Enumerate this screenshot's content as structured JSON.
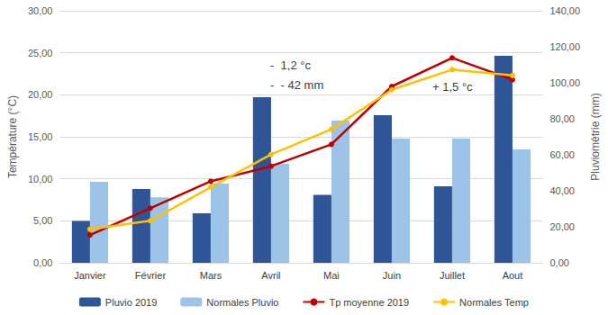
{
  "chart_data": {
    "type": "bar",
    "categories": [
      "Janvier",
      "Février",
      "Mars",
      "Avril",
      "Mai",
      "Juin",
      "Juillet",
      "Aout"
    ],
    "series": [
      {
        "name": "Pluvio 2019",
        "type": "bar",
        "axis": "y2",
        "color": "#2f5597",
        "values": [
          23.3,
          41.0,
          27.5,
          92.0,
          37.8,
          82.0,
          42.5,
          115.0
        ]
      },
      {
        "name": "Normales Pluvio",
        "type": "bar",
        "axis": "y2",
        "color": "#9dc3e6",
        "values": [
          45.0,
          36.4,
          44.0,
          55.0,
          79.0,
          69.0,
          69.0,
          63.0
        ]
      },
      {
        "name": "Tp moyenne 2019",
        "type": "line",
        "color": "#c00000",
        "marker": "circle",
        "values": [
          3.3,
          6.5,
          9.7,
          11.5,
          14.1,
          21.0,
          24.4,
          21.8
        ]
      },
      {
        "name": "Normales Temp",
        "type": "line",
        "color": "#ffc000",
        "marker": "circle",
        "values": [
          4.0,
          5.0,
          9.0,
          12.9,
          15.9,
          20.6,
          23.0,
          22.3
        ]
      }
    ],
    "ylabel": "Température (°C)",
    "y2label": "Pluviométrie (mm)",
    "ylim": [
      0,
      30
    ],
    "yticks": [
      {
        "value": 0,
        "label": "0,00"
      },
      {
        "value": 5,
        "label": "5,00"
      },
      {
        "value": 10,
        "label": "10,00"
      },
      {
        "value": 15,
        "label": "15,00"
      },
      {
        "value": 20,
        "label": "20,00"
      },
      {
        "value": 25,
        "label": "25,00"
      },
      {
        "value": 30,
        "label": "30,00"
      }
    ],
    "y2lim": [
      0,
      140
    ],
    "y2ticks": [
      {
        "value": 0,
        "label": "0,00"
      },
      {
        "value": 20,
        "label": "20,00"
      },
      {
        "value": 40,
        "label": "40,00"
      },
      {
        "value": 60,
        "label": "60,00"
      },
      {
        "value": 80,
        "label": "80,00"
      },
      {
        "value": 100,
        "label": "100,00"
      },
      {
        "value": 120,
        "label": "120,00"
      },
      {
        "value": 140,
        "label": "140,00"
      }
    ],
    "annotations": [
      "-  1,2 °c",
      "-  - 42 mm",
      "+ 1,5 °c"
    ],
    "grid": true,
    "legend": "bottom"
  }
}
